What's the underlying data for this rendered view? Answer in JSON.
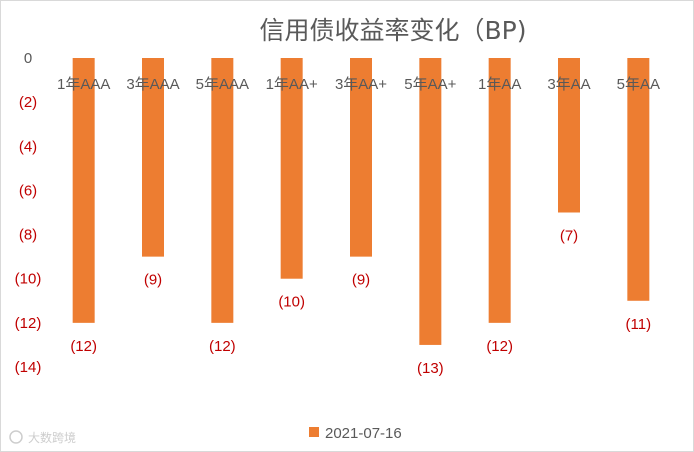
{
  "chart_data": {
    "type": "bar",
    "title": "信用债收益率变化（BP)",
    "xlabel": "",
    "ylabel": "",
    "categories": [
      "1年AAA",
      "3年AAA",
      "5年AAA",
      "1年AA+",
      "3年AA+",
      "5年AA+",
      "1年AA",
      "3年AA",
      "5年AA"
    ],
    "series": [
      {
        "name": "2021-07-16",
        "values": [
          -12,
          -9,
          -12,
          -10,
          -9,
          -13,
          -12,
          -7,
          -11
        ]
      }
    ],
    "data_labels": [
      "(12)",
      "(9)",
      "(12)",
      "(10)",
      "(9)",
      "(13)",
      "(12)",
      "(7)",
      "(11)"
    ],
    "ylim": [
      -14,
      0
    ],
    "y_ticks": [
      0,
      -2,
      -4,
      -6,
      -8,
      -10,
      -12,
      -14
    ],
    "y_tick_labels": [
      "0",
      "(2)",
      "(4)",
      "(6)",
      "(8)",
      "(10)",
      "(12)",
      "(14)"
    ],
    "grid": false,
    "legend_position": "bottom",
    "colors": {
      "bar": "#ED7D31",
      "negative_text": "#C00000",
      "axis_text": "#595959"
    }
  },
  "watermark": "大数跨境"
}
